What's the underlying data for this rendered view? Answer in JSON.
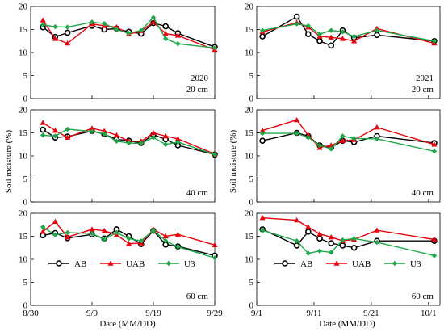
{
  "figure": {
    "y_axis_label": "Soil moisture (%)",
    "x_axis_label": "Date (MM/DD)"
  },
  "legend": [
    {
      "name": "AB",
      "color": "#000000",
      "marker": "circle"
    },
    {
      "name": "UAB",
      "color": "#e8000b",
      "marker": "triangle"
    },
    {
      "name": "U3",
      "color": "#1fa84a",
      "marker": "diamond"
    }
  ],
  "chart_data": [
    {
      "type": "line",
      "panel": "2020 20 cm",
      "annotation_lines": [
        "2020",
        "20 cm"
      ],
      "x_ticks": [
        "8/30",
        "9/9",
        "9/19",
        "9/29"
      ],
      "xlim": [
        "8/30",
        "9/29"
      ],
      "ylim": [
        0,
        20
      ],
      "y_ticks": [
        0,
        5,
        10,
        15,
        20
      ],
      "series": [
        {
          "name": "AB",
          "x": [
            "9/1",
            "9/3",
            "9/5",
            "9/9",
            "9/11",
            "9/13",
            "9/15",
            "9/17",
            "9/19",
            "9/21",
            "9/23",
            "9/29"
          ],
          "y": [
            15.5,
            13.4,
            14.3,
            15.8,
            15.0,
            15.2,
            14.5,
            14.1,
            16.4,
            15.7,
            14.2,
            11.2
          ]
        },
        {
          "name": "UAB",
          "x": [
            "9/1",
            "9/3",
            "9/5",
            "9/9",
            "9/11",
            "9/13",
            "9/15",
            "9/17",
            "9/19",
            "9/21",
            "9/23",
            "9/29"
          ],
          "y": [
            17.0,
            13.0,
            12.0,
            16.2,
            15.8,
            15.5,
            14.0,
            14.7,
            16.6,
            14.1,
            13.7,
            10.6
          ]
        },
        {
          "name": "U3",
          "x": [
            "9/1",
            "9/3",
            "9/5",
            "9/9",
            "9/11",
            "9/13",
            "9/15",
            "9/17",
            "9/19",
            "9/21",
            "9/23",
            "9/29"
          ],
          "y": [
            16.0,
            15.6,
            15.5,
            16.6,
            16.3,
            15.0,
            14.2,
            14.8,
            17.6,
            13.0,
            11.9,
            11.0
          ]
        }
      ]
    },
    {
      "type": "line",
      "panel": "2021 20 cm",
      "annotation_lines": [
        "2021",
        "20 cm"
      ],
      "x_ticks": [
        "9/1",
        "9/11",
        "9/21",
        "10/1"
      ],
      "xlim": [
        "9/1",
        "10/3"
      ],
      "ylim": [
        0,
        20
      ],
      "y_ticks": [
        0,
        5,
        10,
        15,
        20
      ],
      "series": [
        {
          "name": "AB",
          "x": [
            "9/2",
            "9/8",
            "9/10",
            "9/12",
            "9/14",
            "9/16",
            "9/18",
            "9/22",
            "10/2"
          ],
          "y": [
            13.5,
            17.8,
            14.0,
            12.5,
            11.5,
            14.8,
            13.2,
            13.8,
            12.5
          ]
        },
        {
          "name": "UAB",
          "x": [
            "9/2",
            "9/8",
            "9/10",
            "9/12",
            "9/14",
            "9/16",
            "9/18",
            "9/22",
            "10/2"
          ],
          "y": [
            14.5,
            16.5,
            15.5,
            13.5,
            13.3,
            13.0,
            12.5,
            15.2,
            12.0
          ]
        },
        {
          "name": "U3",
          "x": [
            "9/2",
            "9/8",
            "9/10",
            "9/12",
            "9/14",
            "9/16",
            "9/18",
            "9/22",
            "10/2"
          ],
          "y": [
            14.8,
            16.2,
            15.8,
            14.0,
            14.8,
            14.5,
            13.5,
            14.8,
            12.5
          ]
        }
      ]
    },
    {
      "type": "line",
      "panel": "2020 40 cm",
      "annotation_lines": [
        "40 cm"
      ],
      "x_ticks": [
        "8/30",
        "9/9",
        "9/19",
        "9/29"
      ],
      "xlim": [
        "8/30",
        "9/29"
      ],
      "ylim": [
        0,
        20
      ],
      "y_ticks": [
        0,
        5,
        10,
        15,
        20
      ],
      "series": [
        {
          "name": "AB",
          "x": [
            "9/1",
            "9/3",
            "9/5",
            "9/9",
            "9/11",
            "9/13",
            "9/15",
            "9/17",
            "9/19",
            "9/21",
            "9/23",
            "9/29"
          ],
          "y": [
            15.7,
            14.0,
            14.2,
            15.4,
            14.7,
            13.6,
            13.3,
            12.8,
            14.6,
            13.6,
            12.3,
            10.3
          ]
        },
        {
          "name": "UAB",
          "x": [
            "9/1",
            "9/3",
            "9/5",
            "9/9",
            "9/11",
            "9/13",
            "9/15",
            "9/17",
            "9/19",
            "9/21",
            "9/23",
            "9/29"
          ],
          "y": [
            17.2,
            15.5,
            14.0,
            16.0,
            15.4,
            14.5,
            13.2,
            13.2,
            15.0,
            14.3,
            13.7,
            10.4
          ]
        },
        {
          "name": "U3",
          "x": [
            "9/1",
            "9/3",
            "9/5",
            "9/9",
            "9/11",
            "9/13",
            "9/15",
            "9/17",
            "9/19",
            "9/21",
            "9/23",
            "9/29"
          ],
          "y": [
            14.5,
            14.3,
            15.8,
            15.3,
            14.8,
            13.2,
            12.8,
            12.7,
            14.0,
            12.5,
            13.0,
            10.3
          ]
        }
      ]
    },
    {
      "type": "line",
      "panel": "2021 40 cm",
      "annotation_lines": [
        "40 cm"
      ],
      "x_ticks": [
        "9/1",
        "9/11",
        "9/21",
        "10/1"
      ],
      "xlim": [
        "9/1",
        "10/3"
      ],
      "ylim": [
        0,
        20
      ],
      "y_ticks": [
        0,
        5,
        10,
        15,
        20
      ],
      "series": [
        {
          "name": "AB",
          "x": [
            "9/2",
            "9/8",
            "9/10",
            "9/12",
            "9/14",
            "9/16",
            "9/18",
            "9/22",
            "10/2"
          ],
          "y": [
            13.3,
            15.0,
            14.3,
            12.3,
            11.8,
            13.3,
            13.0,
            14.3,
            12.8
          ]
        },
        {
          "name": "UAB",
          "x": [
            "9/2",
            "9/8",
            "9/10",
            "9/12",
            "9/14",
            "9/16",
            "9/18",
            "9/22",
            "10/2"
          ],
          "y": [
            15.5,
            17.8,
            14.5,
            11.8,
            12.3,
            13.3,
            13.5,
            16.2,
            12.5
          ]
        },
        {
          "name": "U3",
          "x": [
            "9/2",
            "9/8",
            "9/10",
            "9/12",
            "9/14",
            "9/16",
            "9/18",
            "9/22",
            "10/2"
          ],
          "y": [
            14.9,
            14.9,
            14.0,
            12.3,
            11.5,
            14.3,
            13.8,
            13.7,
            11.0
          ]
        }
      ]
    },
    {
      "type": "line",
      "panel": "2020 60 cm",
      "annotation_lines": [
        "60 cm"
      ],
      "x_ticks": [
        "8/30",
        "9/9",
        "9/19",
        "9/29"
      ],
      "xlim": [
        "8/30",
        "9/29"
      ],
      "ylim": [
        0,
        20
      ],
      "y_ticks": [
        0,
        5,
        10,
        15,
        20
      ],
      "series": [
        {
          "name": "AB",
          "x": [
            "9/1",
            "9/3",
            "9/5",
            "9/9",
            "9/11",
            "9/13",
            "9/15",
            "9/17",
            "9/19",
            "9/21",
            "9/23",
            "9/29"
          ],
          "y": [
            15.2,
            15.7,
            14.6,
            15.4,
            14.5,
            16.5,
            15.0,
            13.3,
            16.2,
            13.2,
            12.8,
            10.8
          ]
        },
        {
          "name": "UAB",
          "x": [
            "9/1",
            "9/3",
            "9/5",
            "9/9",
            "9/11",
            "9/13",
            "9/15",
            "9/17",
            "9/19",
            "9/21",
            "9/23",
            "9/29"
          ],
          "y": [
            16.0,
            18.2,
            14.8,
            16.5,
            16.2,
            15.3,
            13.4,
            13.5,
            16.5,
            15.0,
            15.4,
            13.1
          ]
        },
        {
          "name": "U3",
          "x": [
            "9/1",
            "9/3",
            "9/5",
            "9/9",
            "9/11",
            "9/13",
            "9/15",
            "9/17",
            "9/19",
            "9/21",
            "9/23",
            "9/29"
          ],
          "y": [
            17.0,
            15.3,
            15.8,
            15.6,
            14.3,
            15.8,
            14.5,
            14.0,
            16.3,
            14.0,
            12.7,
            10.3
          ]
        }
      ]
    },
    {
      "type": "line",
      "panel": "2021 60 cm",
      "annotation_lines": [
        "60 cm"
      ],
      "x_ticks": [
        "9/1",
        "9/11",
        "9/21",
        "10/1"
      ],
      "xlim": [
        "9/1",
        "10/3"
      ],
      "ylim": [
        0,
        20
      ],
      "y_ticks": [
        0,
        5,
        10,
        15,
        20
      ],
      "series": [
        {
          "name": "AB",
          "x": [
            "9/2",
            "9/8",
            "9/10",
            "9/12",
            "9/14",
            "9/16",
            "9/18",
            "9/22",
            "10/2"
          ],
          "y": [
            16.5,
            13.0,
            16.0,
            14.5,
            13.5,
            13.0,
            12.5,
            14.0,
            14.0
          ]
        },
        {
          "name": "UAB",
          "x": [
            "9/2",
            "9/8",
            "9/10",
            "9/12",
            "9/14",
            "9/16",
            "9/18",
            "9/22",
            "10/2"
          ],
          "y": [
            19.0,
            18.5,
            17.0,
            15.5,
            14.8,
            14.0,
            14.3,
            16.3,
            14.3
          ]
        },
        {
          "name": "U3",
          "x": [
            "9/2",
            "9/8",
            "9/10",
            "9/12",
            "9/14",
            "9/16",
            "9/18",
            "9/22",
            "10/2"
          ],
          "y": [
            16.3,
            14.0,
            11.3,
            11.8,
            11.5,
            14.2,
            14.5,
            13.7,
            10.8
          ]
        }
      ]
    }
  ]
}
